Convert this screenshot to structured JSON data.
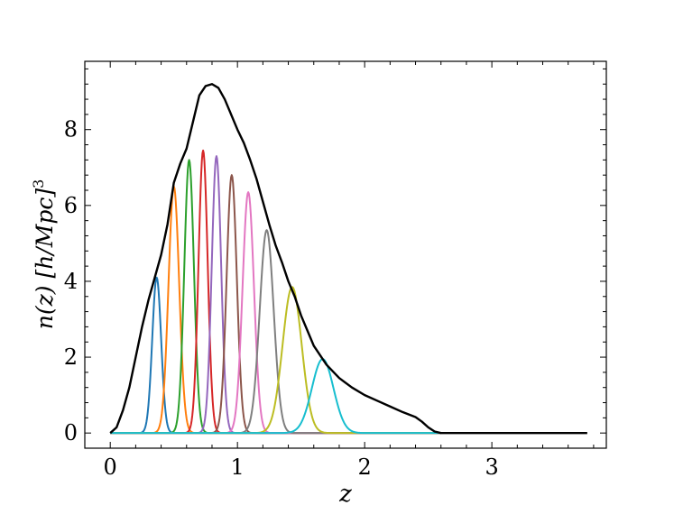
{
  "chart_data": {
    "type": "line",
    "xlabel": "z",
    "ylabel": "n(z) [h/Mpc]",
    "ylabel_exponent": "3",
    "xlim": [
      -0.2,
      3.9
    ],
    "ylim": [
      -0.4,
      9.8
    ],
    "xticks": [
      0,
      1,
      2,
      3
    ],
    "yticks": [
      0,
      2,
      4,
      6,
      8
    ],
    "grid": false,
    "total": {
      "color": "#000000",
      "points": [
        [
          0.0,
          0.0
        ],
        [
          0.05,
          0.15
        ],
        [
          0.1,
          0.6
        ],
        [
          0.15,
          1.2
        ],
        [
          0.2,
          2.0
        ],
        [
          0.25,
          2.8
        ],
        [
          0.3,
          3.5
        ],
        [
          0.35,
          4.1
        ],
        [
          0.4,
          4.7
        ],
        [
          0.45,
          5.5
        ],
        [
          0.5,
          6.6
        ],
        [
          0.55,
          7.1
        ],
        [
          0.6,
          7.5
        ],
        [
          0.65,
          8.2
        ],
        [
          0.7,
          8.9
        ],
        [
          0.75,
          9.15
        ],
        [
          0.8,
          9.2
        ],
        [
          0.85,
          9.1
        ],
        [
          0.9,
          8.8
        ],
        [
          0.95,
          8.4
        ],
        [
          1.0,
          8.0
        ],
        [
          1.05,
          7.65
        ],
        [
          1.1,
          7.2
        ],
        [
          1.15,
          6.7
        ],
        [
          1.2,
          6.1
        ],
        [
          1.25,
          5.5
        ],
        [
          1.3,
          4.95
        ],
        [
          1.35,
          4.5
        ],
        [
          1.4,
          4.0
        ],
        [
          1.45,
          3.6
        ],
        [
          1.5,
          3.1
        ],
        [
          1.55,
          2.7
        ],
        [
          1.6,
          2.3
        ],
        [
          1.65,
          2.05
        ],
        [
          1.7,
          1.8
        ],
        [
          1.8,
          1.45
        ],
        [
          1.9,
          1.2
        ],
        [
          2.0,
          1.0
        ],
        [
          2.1,
          0.85
        ],
        [
          2.2,
          0.7
        ],
        [
          2.3,
          0.55
        ],
        [
          2.4,
          0.42
        ],
        [
          2.45,
          0.3
        ],
        [
          2.5,
          0.15
        ],
        [
          2.55,
          0.04
        ],
        [
          2.6,
          0.0
        ],
        [
          3.0,
          0.0
        ],
        [
          3.5,
          0.0
        ],
        [
          3.75,
          0.0
        ]
      ]
    },
    "series": [
      {
        "color": "#1f77b4",
        "mu": 0.365,
        "sigma": 0.035,
        "peak": 4.1
      },
      {
        "color": "#ff7f0e",
        "mu": 0.5,
        "sigma": 0.042,
        "peak": 6.5
      },
      {
        "color": "#2ca02c",
        "mu": 0.62,
        "sigma": 0.038,
        "peak": 7.2
      },
      {
        "color": "#d62728",
        "mu": 0.73,
        "sigma": 0.036,
        "peak": 7.45
      },
      {
        "color": "#9467bd",
        "mu": 0.835,
        "sigma": 0.037,
        "peak": 7.3
      },
      {
        "color": "#8c564b",
        "mu": 0.955,
        "sigma": 0.04,
        "peak": 6.8
      },
      {
        "color": "#e377c2",
        "mu": 1.085,
        "sigma": 0.045,
        "peak": 6.35
      },
      {
        "color": "#7f7f7f",
        "mu": 1.23,
        "sigma": 0.055,
        "peak": 5.35
      },
      {
        "color": "#bcbd22",
        "mu": 1.43,
        "sigma": 0.075,
        "peak": 3.85
      },
      {
        "color": "#17becf",
        "mu": 1.67,
        "sigma": 0.085,
        "peak": 1.95
      }
    ]
  }
}
